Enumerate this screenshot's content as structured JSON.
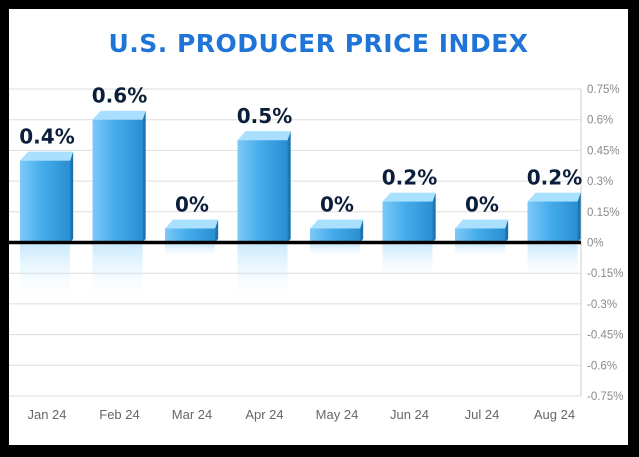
{
  "colors": {
    "title": "#1f74d8",
    "bar_light": "#8fd3ff",
    "bar_mid": "#3fa8ea",
    "bar_dark": "#1a7fc4",
    "zero_line": "#000000",
    "grid": "#dddddd",
    "label": "#0b1f3a"
  },
  "chart_data": {
    "type": "bar",
    "title": "U.S. PRODUCER PRICE INDEX",
    "xlabel": "",
    "ylabel": "",
    "categories": [
      "Jan 24",
      "Feb 24",
      "Mar 24",
      "Apr 24",
      "May 24",
      "Jun 24",
      "Jul 24",
      "Aug 24"
    ],
    "values": [
      0.4,
      0.6,
      0,
      0.5,
      0,
      0.2,
      0,
      0.2
    ],
    "data_labels": [
      "0.4%",
      "0.6%",
      "0%",
      "0.5%",
      "0%",
      "0.2%",
      "0%",
      "0.2%"
    ],
    "ylim": [
      -0.75,
      0.75
    ],
    "yticks": [
      0.75,
      0.6,
      0.45,
      0.3,
      0.15,
      0,
      -0.15,
      -0.3,
      -0.45,
      -0.6,
      -0.75
    ],
    "ytick_labels": [
      "0.75%",
      "0.6%",
      "0.45%",
      "0.3%",
      "0.15%",
      "0%",
      "-0.15%",
      "-0.3%",
      "-0.45%",
      "-0.6%",
      "-0.75%"
    ],
    "y_axis_position": "right",
    "grid": true
  }
}
